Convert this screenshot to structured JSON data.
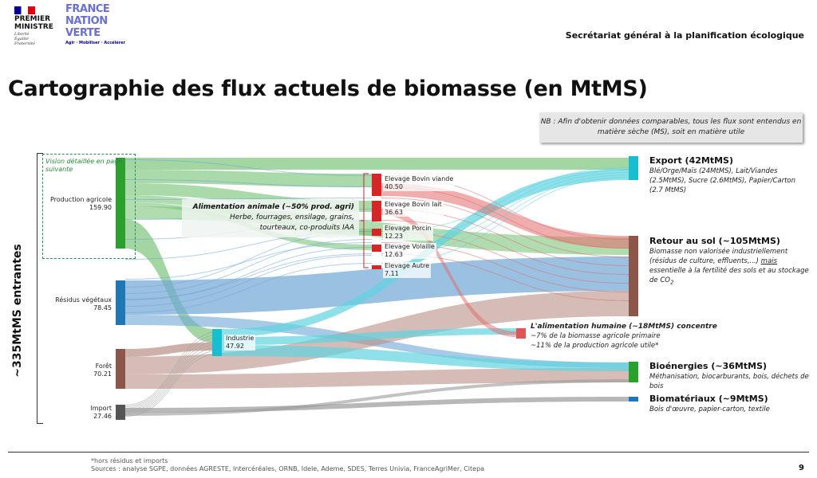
{
  "header": {
    "gov_logo": {
      "line1": "PREMIER",
      "line2": "MINISTRE",
      "motto": [
        "Liberté",
        "Égalité",
        "Fraternité"
      ]
    },
    "brand_logo": {
      "lines": [
        "FRANCE",
        "NATION",
        "VERTE"
      ],
      "tagline": "Agir · Mobiliser · Accélérer"
    },
    "org": "Secrétariat général à la planification écologique"
  },
  "title": "Cartographie des flux actuels de biomasse (en MtMS)",
  "note": "NB : Afin d'obtenir données comparables, tous les flux sont entendus en matière sèche (MS), soit en matière utile",
  "total_label": "~335MtMS entrantes",
  "vision_note": "Vision détaillée en page suivante",
  "sources": [
    {
      "label": "Production agricole",
      "value": "159.90",
      "color": "#2ca02c"
    },
    {
      "label": "Résidus végétaux",
      "value": "78.45",
      "color": "#1f77b4"
    },
    {
      "label": "Forêt",
      "value": "70.21",
      "color": "#8c564b"
    },
    {
      "label": "Import",
      "value": "27.46",
      "color": "#555555"
    }
  ],
  "industrie": {
    "label": "Industrie",
    "value": "47.92",
    "color": "#17becf"
  },
  "elevage": [
    {
      "label": "Elevage Bovin viande",
      "value": "40.50"
    },
    {
      "label": "Elevage Bovin lait",
      "value": "36.63"
    },
    {
      "label": "Elevage Porcin",
      "value": "12.23"
    },
    {
      "label": "Elevage Volaille",
      "value": "12.63"
    },
    {
      "label": "Elevage Autre",
      "value": "7.11"
    }
  ],
  "alimentation_animale": {
    "title": "Alimentation animale (~50% prod. agri)",
    "line1": "Herbe, fourrages, ensilage, grains,",
    "line2": "tourteaux, co-produits IAA"
  },
  "alimentation_humaine": {
    "title": "L'alimentation humaine (~18MtMS) concentre",
    "line1": "~7% de la biomasse agricole primaire",
    "line2": "~11% de la production agricole utile*"
  },
  "destinations": [
    {
      "title": "Export (42MtMS)",
      "desc": "Blé/Orge/Maïs (24MtMS), Lait/Viandes (2.5MtMS), Sucre (2.6MtMS), Papier/Carton (2.7 MtMS)",
      "color": "#17becf"
    },
    {
      "title": "Retour au sol (~105MtMS)",
      "desc_a": "Biomasse non valorisée industriellement (résidus de culture, effluents,...) ",
      "desc_u": "mais",
      "desc_b": " essentielle à la fertilité des sols et au stockage de CO",
      "desc_sub": "2",
      "color": "#8c564b"
    },
    {
      "title": "Bioénergies (~36MtMS)",
      "desc": "Méthanisation, biocarburants, bois, déchets de bois",
      "color": "#2ca02c"
    },
    {
      "title": "Biomatériaux (~9MtMS)",
      "desc": "Bois d'œuvre, papier-carton, textile",
      "color": "#1f77b4"
    }
  ],
  "footer": {
    "note": "*hors résidus et imports",
    "sources": "Sources : analyse SGPE, données AGRESTE, Intercéréales, ORNB, Idele, Ademe, SDES, Terres Univia, FranceAgriMer, Citepa",
    "page": "9"
  }
}
